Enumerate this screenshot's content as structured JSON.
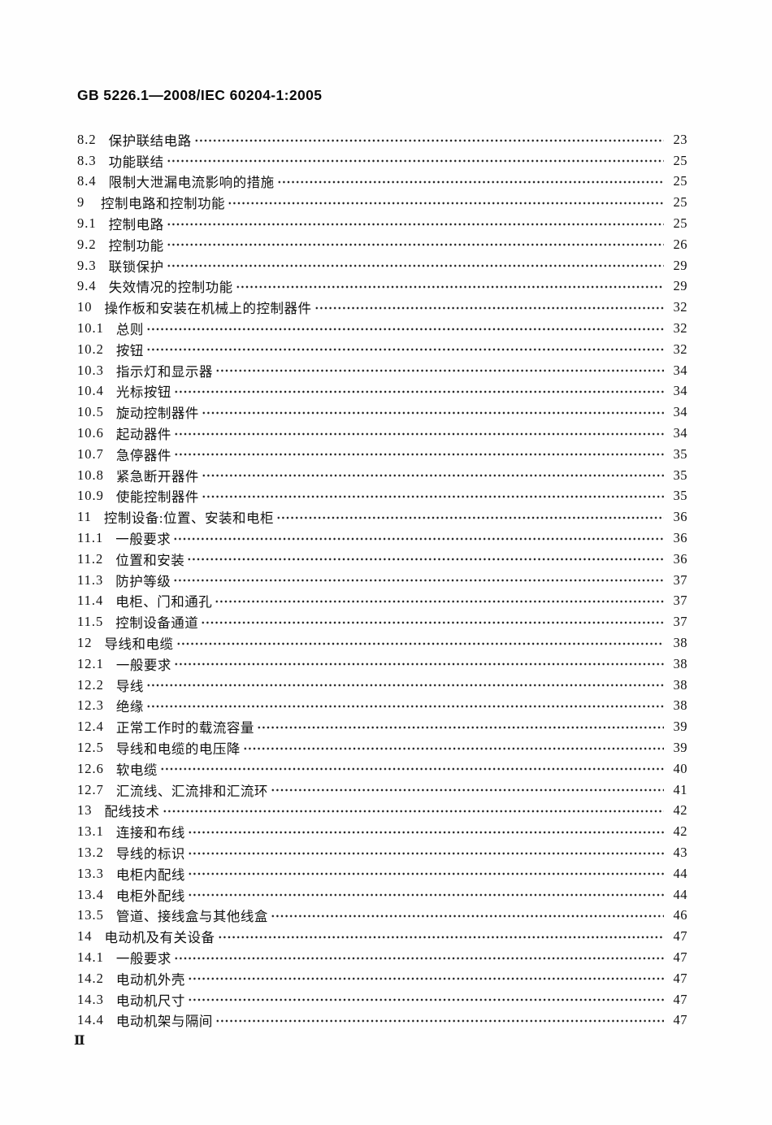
{
  "page": {
    "header": "GB 5226.1—2008/IEC 60204-1:2005",
    "footer_page_number": "Ⅱ"
  },
  "toc": {
    "entries": [
      {
        "num": "8.2",
        "title": "保护联结电路",
        "page": "23"
      },
      {
        "num": "8.3",
        "title": "功能联结",
        "page": "25"
      },
      {
        "num": "8.4",
        "title": "限制大泄漏电流影响的措施",
        "page": "25"
      },
      {
        "num": "9",
        "title": "控制电路和控制功能",
        "page": "25"
      },
      {
        "num": "9.1",
        "title": "控制电路",
        "page": "25"
      },
      {
        "num": "9.2",
        "title": "控制功能",
        "page": "26"
      },
      {
        "num": "9.3",
        "title": "联锁保护",
        "page": "29"
      },
      {
        "num": "9.4",
        "title": "失效情况的控制功能",
        "page": "29"
      },
      {
        "num": "10",
        "title": "操作板和安装在机械上的控制器件",
        "page": "32"
      },
      {
        "num": "10.1",
        "title": "总则",
        "page": "32"
      },
      {
        "num": "10.2",
        "title": "按钮",
        "page": "32"
      },
      {
        "num": "10.3",
        "title": "指示灯和显示器",
        "page": "34"
      },
      {
        "num": "10.4",
        "title": "光标按钮",
        "page": "34"
      },
      {
        "num": "10.5",
        "title": "旋动控制器件",
        "page": "34"
      },
      {
        "num": "10.6",
        "title": "起动器件",
        "page": "34"
      },
      {
        "num": "10.7",
        "title": "急停器件",
        "page": "35"
      },
      {
        "num": "10.8",
        "title": "紧急断开器件",
        "page": "35"
      },
      {
        "num": "10.9",
        "title": "使能控制器件",
        "page": "35"
      },
      {
        "num": "11",
        "title": "控制设备:位置、安装和电柜",
        "page": "36"
      },
      {
        "num": "11.1",
        "title": "一般要求",
        "page": "36"
      },
      {
        "num": "11.2",
        "title": "位置和安装",
        "page": "36"
      },
      {
        "num": "11.3",
        "title": "防护等级",
        "page": "37"
      },
      {
        "num": "11.4",
        "title": "电柜、门和通孔",
        "page": "37"
      },
      {
        "num": "11.5",
        "title": "控制设备通道",
        "page": "37"
      },
      {
        "num": "12",
        "title": "导线和电缆",
        "page": "38"
      },
      {
        "num": "12.1",
        "title": "一般要求",
        "page": "38"
      },
      {
        "num": "12.2",
        "title": "导线",
        "page": "38"
      },
      {
        "num": "12.3",
        "title": "绝缘",
        "page": "38"
      },
      {
        "num": "12.4",
        "title": "正常工作时的载流容量",
        "page": "39"
      },
      {
        "num": "12.5",
        "title": "导线和电缆的电压降",
        "page": "39"
      },
      {
        "num": "12.6",
        "title": "软电缆",
        "page": "40"
      },
      {
        "num": "12.7",
        "title": "汇流线、汇流排和汇流环",
        "page": "41"
      },
      {
        "num": "13",
        "title": "配线技术",
        "page": "42"
      },
      {
        "num": "13.1",
        "title": "连接和布线",
        "page": "42"
      },
      {
        "num": "13.2",
        "title": "导线的标识",
        "page": "43"
      },
      {
        "num": "13.3",
        "title": "电柜内配线",
        "page": "44"
      },
      {
        "num": "13.4",
        "title": "电柜外配线",
        "page": "44"
      },
      {
        "num": "13.5",
        "title": "管道、接线盒与其他线盒",
        "page": "46"
      },
      {
        "num": "14",
        "title": "电动机及有关设备",
        "page": "47"
      },
      {
        "num": "14.1",
        "title": "一般要求",
        "page": "47"
      },
      {
        "num": "14.2",
        "title": "电动机外壳",
        "page": "47"
      },
      {
        "num": "14.3",
        "title": "电动机尺寸",
        "page": "47"
      },
      {
        "num": "14.4",
        "title": "电动机架与隔间",
        "page": "47"
      }
    ]
  }
}
